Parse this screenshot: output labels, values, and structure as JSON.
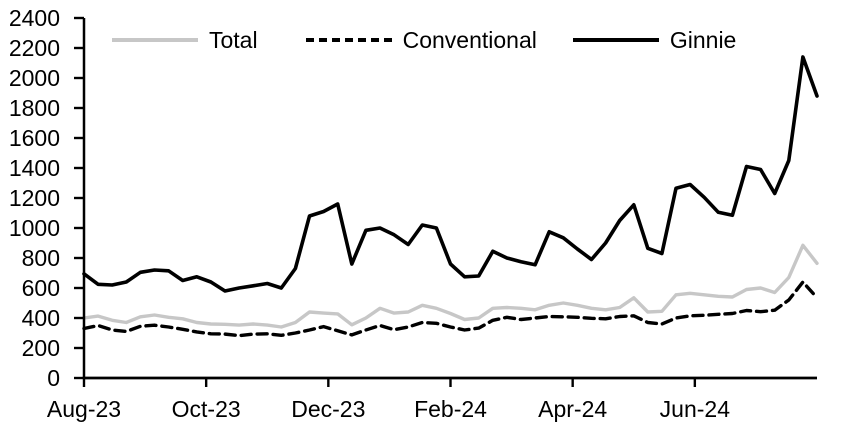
{
  "chart_data": {
    "type": "line",
    "title": "",
    "frequency": "weekly",
    "x_axis": {
      "start": "Aug-23",
      "end": "Aug-24",
      "tick_labels": [
        "Aug-23",
        "Oct-23",
        "Dec-23",
        "Feb-24",
        "Apr-24",
        "Jun-24"
      ],
      "tick_month_positions": [
        0,
        2,
        4,
        6,
        8,
        10
      ],
      "total_months": 12
    },
    "y_axis": {
      "min": 0,
      "max": 2400,
      "step": 200,
      "tick_labels": [
        "0",
        "200",
        "400",
        "600",
        "800",
        "1000",
        "1200",
        "1400",
        "1600",
        "1800",
        "2000",
        "2200",
        "2400"
      ]
    },
    "grid": false,
    "legend": {
      "position": "top",
      "entries": [
        "Total",
        "Conventional",
        "Ginnie"
      ]
    },
    "series": [
      {
        "name": "Total",
        "color": "#c7c7c7",
        "dash": "solid",
        "values": [
          400,
          413,
          385,
          370,
          408,
          420,
          405,
          395,
          370,
          360,
          358,
          353,
          360,
          353,
          340,
          370,
          440,
          433,
          427,
          355,
          400,
          465,
          433,
          440,
          485,
          465,
          430,
          390,
          400,
          465,
          470,
          465,
          455,
          485,
          500,
          485,
          465,
          455,
          470,
          535,
          440,
          445,
          555,
          565,
          555,
          545,
          540,
          590,
          600,
          570,
          670,
          885,
          765
        ]
      },
      {
        "name": "Conventional",
        "color": "#000000",
        "dash": "dashed",
        "values": [
          330,
          350,
          320,
          310,
          345,
          352,
          340,
          325,
          307,
          295,
          293,
          283,
          293,
          295,
          285,
          300,
          320,
          343,
          315,
          287,
          320,
          350,
          322,
          340,
          370,
          365,
          340,
          320,
          333,
          385,
          405,
          390,
          400,
          410,
          408,
          405,
          398,
          395,
          410,
          415,
          370,
          360,
          400,
          415,
          418,
          425,
          430,
          450,
          442,
          452,
          520,
          640,
          535
        ]
      },
      {
        "name": "Ginnie",
        "color": "#000000",
        "dash": "solid",
        "values": [
          695,
          625,
          620,
          640,
          705,
          720,
          715,
          650,
          675,
          640,
          580,
          600,
          615,
          630,
          600,
          730,
          1080,
          1110,
          1160,
          760,
          985,
          1000,
          955,
          890,
          1020,
          1000,
          760,
          675,
          680,
          845,
          800,
          775,
          755,
          975,
          935,
          860,
          790,
          900,
          1050,
          1155,
          865,
          830,
          1265,
          1290,
          1205,
          1105,
          1085,
          1410,
          1390,
          1230,
          1450,
          2140,
          1880
        ]
      }
    ]
  },
  "colors": {
    "background": "#ffffff",
    "axis": "#000000",
    "total_line": "#c7c7c7",
    "conventional_line": "#000000",
    "ginnie_line": "#000000"
  }
}
